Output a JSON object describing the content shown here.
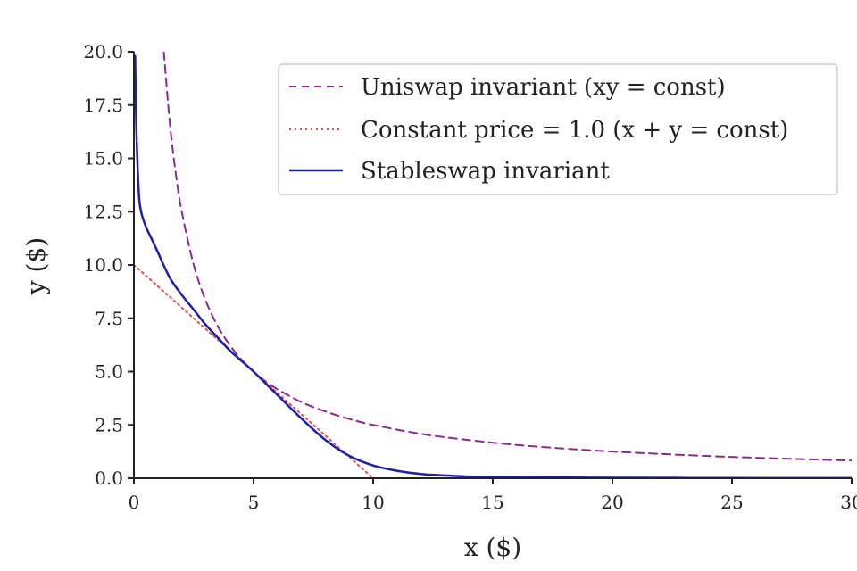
{
  "chart_data": {
    "type": "line",
    "title": "",
    "xlabel": "x ($)",
    "ylabel": "y ($)",
    "xlim": [
      0,
      30
    ],
    "ylim": [
      0,
      20
    ],
    "xticks": [
      0,
      5,
      10,
      15,
      20,
      25,
      30
    ],
    "xtick_labels": [
      "0",
      "5",
      "10",
      "15",
      "20",
      "25",
      "30"
    ],
    "yticks": [
      0,
      2.5,
      5,
      7.5,
      10,
      12.5,
      15,
      17.5,
      20
    ],
    "ytick_labels": [
      "0.0",
      "2.5",
      "5.0",
      "7.5",
      "10.0",
      "12.5",
      "15.0",
      "17.5",
      "20.0"
    ],
    "grid": false,
    "legend_placement": "top-right",
    "series": [
      {
        "name": "Uniswap invariant (xy = const)",
        "style": "dashed",
        "color": "#8b2a8f",
        "x": [
          1.25,
          1.5,
          1.75,
          2,
          2.5,
          3,
          3.5,
          4,
          4.5,
          5,
          5.5,
          6,
          7,
          8,
          9,
          10,
          12,
          14,
          16,
          18,
          20,
          22,
          24,
          26,
          28,
          30
        ],
        "y": [
          20.0,
          16.67,
          14.29,
          12.5,
          10.0,
          8.33,
          7.14,
          6.25,
          5.56,
          5.0,
          4.55,
          4.17,
          3.57,
          3.13,
          2.78,
          2.5,
          2.08,
          1.79,
          1.56,
          1.39,
          1.25,
          1.14,
          1.04,
          0.96,
          0.89,
          0.83
        ]
      },
      {
        "name": "Constant price = 1.0 (x + y = const)",
        "style": "dotted",
        "color": "#d9534f",
        "x": [
          0,
          10
        ],
        "y": [
          10,
          0
        ]
      },
      {
        "name": "Stableswap invariant",
        "style": "solid",
        "color": "#1f1fa8",
        "x": [
          0.05,
          0.1,
          0.2,
          0.3,
          0.5,
          0.75,
          1,
          1.5,
          2,
          2.5,
          3,
          3.5,
          4,
          4.5,
          5,
          5.5,
          6,
          7,
          8,
          9,
          10,
          11,
          12,
          13,
          14,
          15,
          17,
          20,
          25,
          30
        ],
        "y": [
          19.8,
          16.5,
          13.5,
          12.5,
          11.8,
          11.2,
          10.6,
          9.4,
          8.6,
          7.9,
          7.2,
          6.6,
          6.0,
          5.5,
          5.0,
          4.45,
          3.9,
          2.8,
          1.8,
          1.05,
          0.6,
          0.35,
          0.2,
          0.13,
          0.08,
          0.06,
          0.04,
          0.02,
          0.01,
          0.005
        ]
      }
    ]
  },
  "legend": {
    "entries": [
      {
        "label": "Uniswap invariant (xy = const)",
        "series_index": 0
      },
      {
        "label": "Constant price = 1.0 (x + y = const)",
        "series_index": 1
      },
      {
        "label": "Stableswap invariant",
        "series_index": 2
      }
    ]
  }
}
